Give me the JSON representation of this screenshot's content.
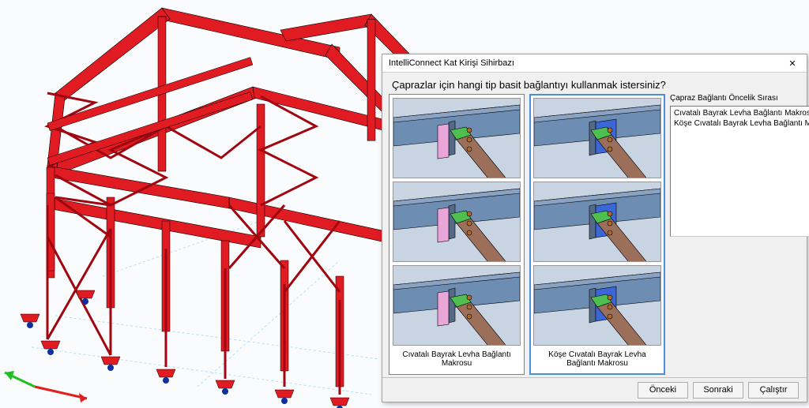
{
  "dialog": {
    "title": "IntelliConnect Kat Kirişi Sihirbazı",
    "question": "Çaprazlar için hangi tip basit bağlantıyı kullanmak istersiniz?",
    "close_glyph": "✕",
    "option_a": {
      "label": "Cıvatalı Bayrak Levha Bağlantı Makrosu",
      "selected": false,
      "thumb": {
        "plate_color": "#e9a6d9",
        "bracket_color": "#4fbf4f",
        "beam_color": "#6d8db3",
        "brace_color": "#9b6f5a",
        "bolt_color": "#b06b2c",
        "bg_color": "#c8d4e2"
      }
    },
    "option_b": {
      "label": "Köşe Cıvatalı Bayrak Levha Bağlantı Makrosu",
      "selected": true,
      "thumb": {
        "plate_color": "#3a66d6",
        "bracket_color": "#4fbf4f",
        "beam_color": "#6d8db3",
        "brace_color": "#9b6f5a",
        "bolt_color": "#b06b2c",
        "bg_color": "#c8d4e2"
      }
    },
    "priority_list": {
      "label": "Çapraz Bağlantı Öncelik Sırası",
      "items": [
        "Cıvatalı Bayrak Levha Bağlantı Makrosu",
        "Köşe Cıvatalı Bayrak Levha Bağlantı Makrosu"
      ]
    },
    "arrows": {
      "up": "▲",
      "down": "▼"
    },
    "buttons": {
      "prev": "Önceki",
      "next": "Sonraki",
      "run": "Çalıştır"
    }
  },
  "model": {
    "steel_color": "#e11b22",
    "steel_dark": "#a00510",
    "edge_color": "#000000",
    "ground_grid": "#7fd0f0",
    "base_node": "#1030a0",
    "axis_x_color": "#e02020",
    "axis_y_color": "#20c020"
  }
}
